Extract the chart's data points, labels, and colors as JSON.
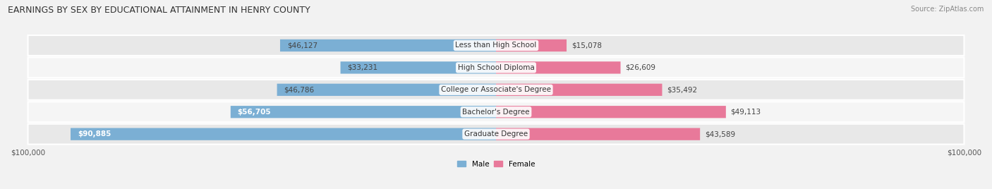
{
  "title": "EARNINGS BY SEX BY EDUCATIONAL ATTAINMENT IN HENRY COUNTY",
  "source": "Source: ZipAtlas.com",
  "categories": [
    "Less than High School",
    "High School Diploma",
    "College or Associate's Degree",
    "Bachelor's Degree",
    "Graduate Degree"
  ],
  "male_values": [
    46127,
    33231,
    46786,
    56705,
    90885
  ],
  "female_values": [
    15078,
    26609,
    35492,
    49113,
    43589
  ],
  "male_color": "#7bafd4",
  "female_color": "#e8799a",
  "bar_height": 0.55,
  "max_val": 100000,
  "bg_color": "#f2f2f2",
  "row_bg_even": "#e8e8e8",
  "row_bg_odd": "#f5f5f5",
  "xlabel_left": "$100,000",
  "xlabel_right": "$100,000",
  "legend_male": "Male",
  "legend_female": "Female",
  "title_fontsize": 9.0,
  "source_fontsize": 7.0,
  "label_fontsize": 7.5,
  "tick_fontsize": 7.5,
  "category_fontsize": 7.5
}
